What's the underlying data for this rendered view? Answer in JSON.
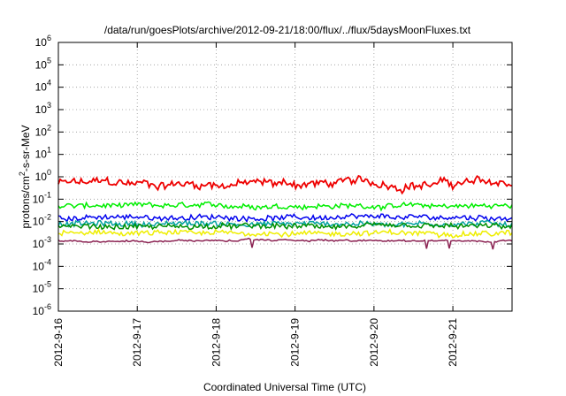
{
  "chart_data": {
    "type": "line",
    "title": "/data/run/goesPlots/archive/2012-09-21/18:00/flux/../flux/5daysMoonFluxes.txt",
    "xlabel": "Coordinated Universal Time (UTC)",
    "ylabel": {
      "base": "protons/cm",
      "sup": "2",
      "rest": "-s-sr-MeV"
    },
    "y_scale": "log",
    "ylim": [
      1e-06,
      1000000.0
    ],
    "y_ticks": [
      {
        "exp": "-6",
        "value": 1e-06
      },
      {
        "exp": "-5",
        "value": 1e-05
      },
      {
        "exp": "-4",
        "value": 0.0001
      },
      {
        "exp": "-3",
        "value": 0.001
      },
      {
        "exp": "-2",
        "value": 0.01
      },
      {
        "exp": "-1",
        "value": 0.1
      },
      {
        "exp": "0",
        "value": 1
      },
      {
        "exp": "1",
        "value": 10
      },
      {
        "exp": "2",
        "value": 100
      },
      {
        "exp": "3",
        "value": 1000
      },
      {
        "exp": "4",
        "value": 10000
      },
      {
        "exp": "5",
        "value": 100000
      },
      {
        "exp": "6",
        "value": 1000000
      }
    ],
    "y_tick_base": "10",
    "xlim": [
      "2012-09-16",
      "2012-09-21 18:00"
    ],
    "x_ticks": [
      "2012-9-16",
      "2012-9-17",
      "2012-9-18",
      "2012-9-19",
      "2012-9-20",
      "2012-9-21"
    ],
    "grid": true,
    "legend": "none",
    "series": [
      {
        "color": "#ee0000",
        "approx_level": 0.5,
        "values_note_free": true
      },
      {
        "color": "#00ee00",
        "approx_level": 0.05
      },
      {
        "color": "#0000ee",
        "approx_level": 0.015
      },
      {
        "color": "#00a0a0",
        "approx_level": 0.008
      },
      {
        "color": "#009000",
        "approx_level": 0.006
      },
      {
        "color": "#eeee00",
        "approx_level": 0.003
      },
      {
        "color": "#8b2252",
        "approx_level": 0.0014
      }
    ]
  }
}
